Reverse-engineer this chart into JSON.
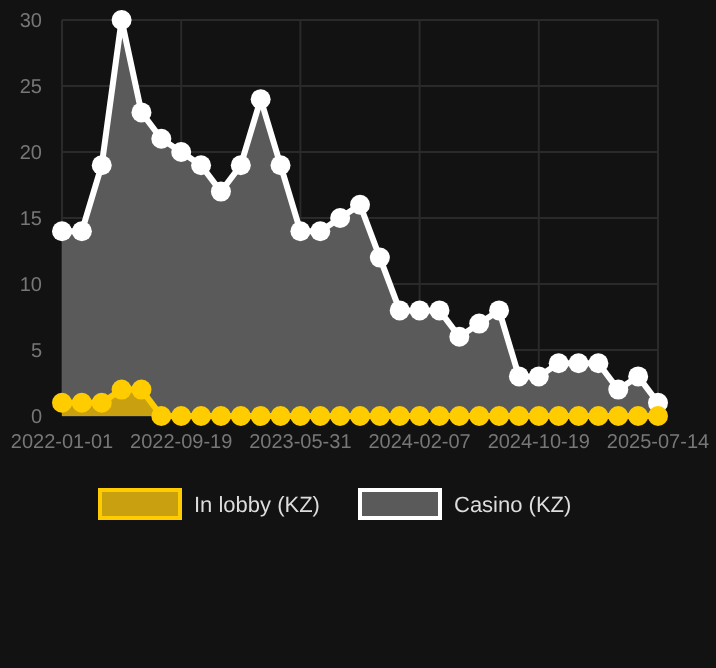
{
  "chart_data": {
    "type": "area",
    "categories": [
      "2022-01-01",
      null,
      null,
      null,
      null,
      null,
      "2022-09-19",
      null,
      null,
      null,
      null,
      null,
      "2023-05-31",
      null,
      null,
      null,
      null,
      null,
      "2024-02-07",
      null,
      null,
      null,
      null,
      null,
      "2024-10-19",
      null,
      null,
      null,
      null,
      null,
      "2025-07-14"
    ],
    "series": [
      {
        "name": "In lobby (KZ)",
        "color": "#ffcc00",
        "values": [
          1,
          1,
          1,
          2,
          2,
          0,
          0,
          0,
          0,
          0,
          0,
          0,
          0,
          0,
          0,
          0,
          0,
          0,
          0,
          0,
          0,
          0,
          0,
          0,
          0,
          0,
          0,
          0,
          0,
          0,
          0
        ]
      },
      {
        "name": "Casino (KZ)",
        "color": "#ffffff",
        "values": [
          14,
          14,
          19,
          30,
          23,
          21,
          20,
          19,
          17,
          19,
          24,
          19,
          14,
          14,
          15,
          16,
          12,
          8,
          8,
          8,
          6,
          7,
          8,
          3,
          3,
          4,
          4,
          4,
          2,
          3,
          1
        ]
      }
    ],
    "ylim": [
      0,
      30
    ],
    "yticks": [
      0,
      5,
      10,
      15,
      20,
      25,
      30
    ],
    "grid": true,
    "legend": "bottom",
    "marker": "circle"
  }
}
